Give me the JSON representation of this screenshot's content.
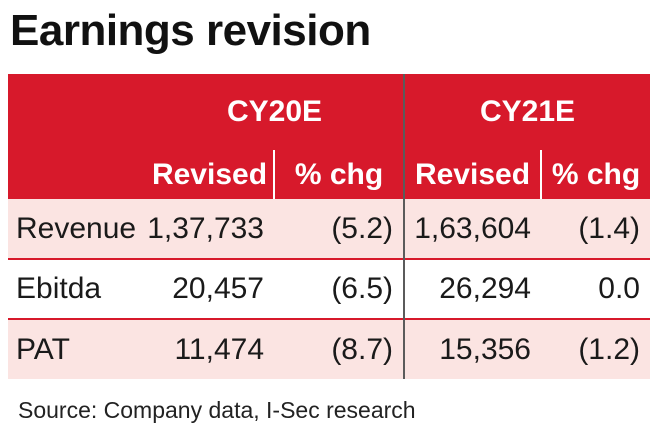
{
  "title": "Earnings revision",
  "table": {
    "periods": [
      "CY20E",
      "CY21E"
    ],
    "subheaders": [
      "Revised",
      "% chg",
      "Revised",
      "% chg"
    ],
    "rows": [
      {
        "label": "Revenue",
        "values": [
          "1,37,733",
          "(5.2)",
          "1,63,604",
          "(1.4)"
        ]
      },
      {
        "label": "Ebitda",
        "values": [
          "20,457",
          "(6.5)",
          "26,294",
          "0.0"
        ]
      },
      {
        "label": "PAT",
        "values": [
          "11,474",
          "(8.7)",
          "15,356",
          "(1.2)"
        ]
      }
    ]
  },
  "source": "Source: Company data, I-Sec research",
  "colors": {
    "header_red": "#d7192b",
    "shade_pink": "#fbe4e2"
  }
}
